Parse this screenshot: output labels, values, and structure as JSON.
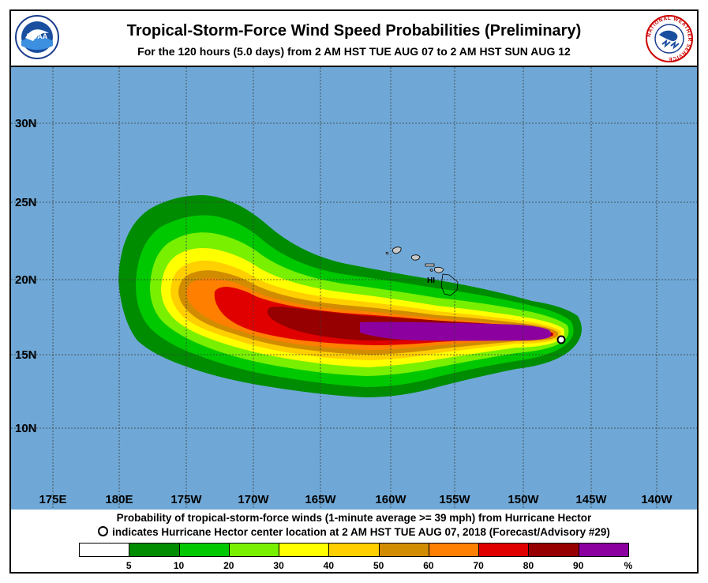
{
  "title": "Tropical-Storm-Force Wind Speed Probabilities (Preliminary)",
  "subtitle": "For the 120 hours (5.0 days) from 2 AM HST TUE AUG 07 to 2 AM HST SUN AUG 12",
  "logos": {
    "left": "NOAA",
    "right_ring": "NATIONAL WEATHER SERVICE"
  },
  "map": {
    "ocean_color": "#6fa8d6",
    "land_color": "#c8c8c8",
    "lat_labels": [
      "30N",
      "25N",
      "20N",
      "15N",
      "10N"
    ],
    "lon_labels": [
      "175E",
      "180E",
      "175W",
      "170W",
      "165W",
      "160W",
      "155W",
      "150W",
      "145W",
      "140W"
    ],
    "state_label": "HI",
    "storm_center_marker": "hurricane-center-circle"
  },
  "footer": {
    "line1": "Probability of tropical-storm-force winds (1-minute average >= 39 mph) from Hurricane Hector",
    "line2": "indicates Hurricane Hector center location at 2 AM HST TUE AUG 07, 2018 (Forecast/Advisory #29)"
  },
  "legend": {
    "colors": [
      "#ffffff",
      "#008c00",
      "#00c800",
      "#78f000",
      "#ffff00",
      "#ffcf00",
      "#d28c00",
      "#ff7f00",
      "#e00000",
      "#960000",
      "#8c00a0"
    ],
    "labels": [
      "5",
      "10",
      "20",
      "30",
      "40",
      "50",
      "60",
      "70",
      "80",
      "90",
      "%"
    ]
  }
}
